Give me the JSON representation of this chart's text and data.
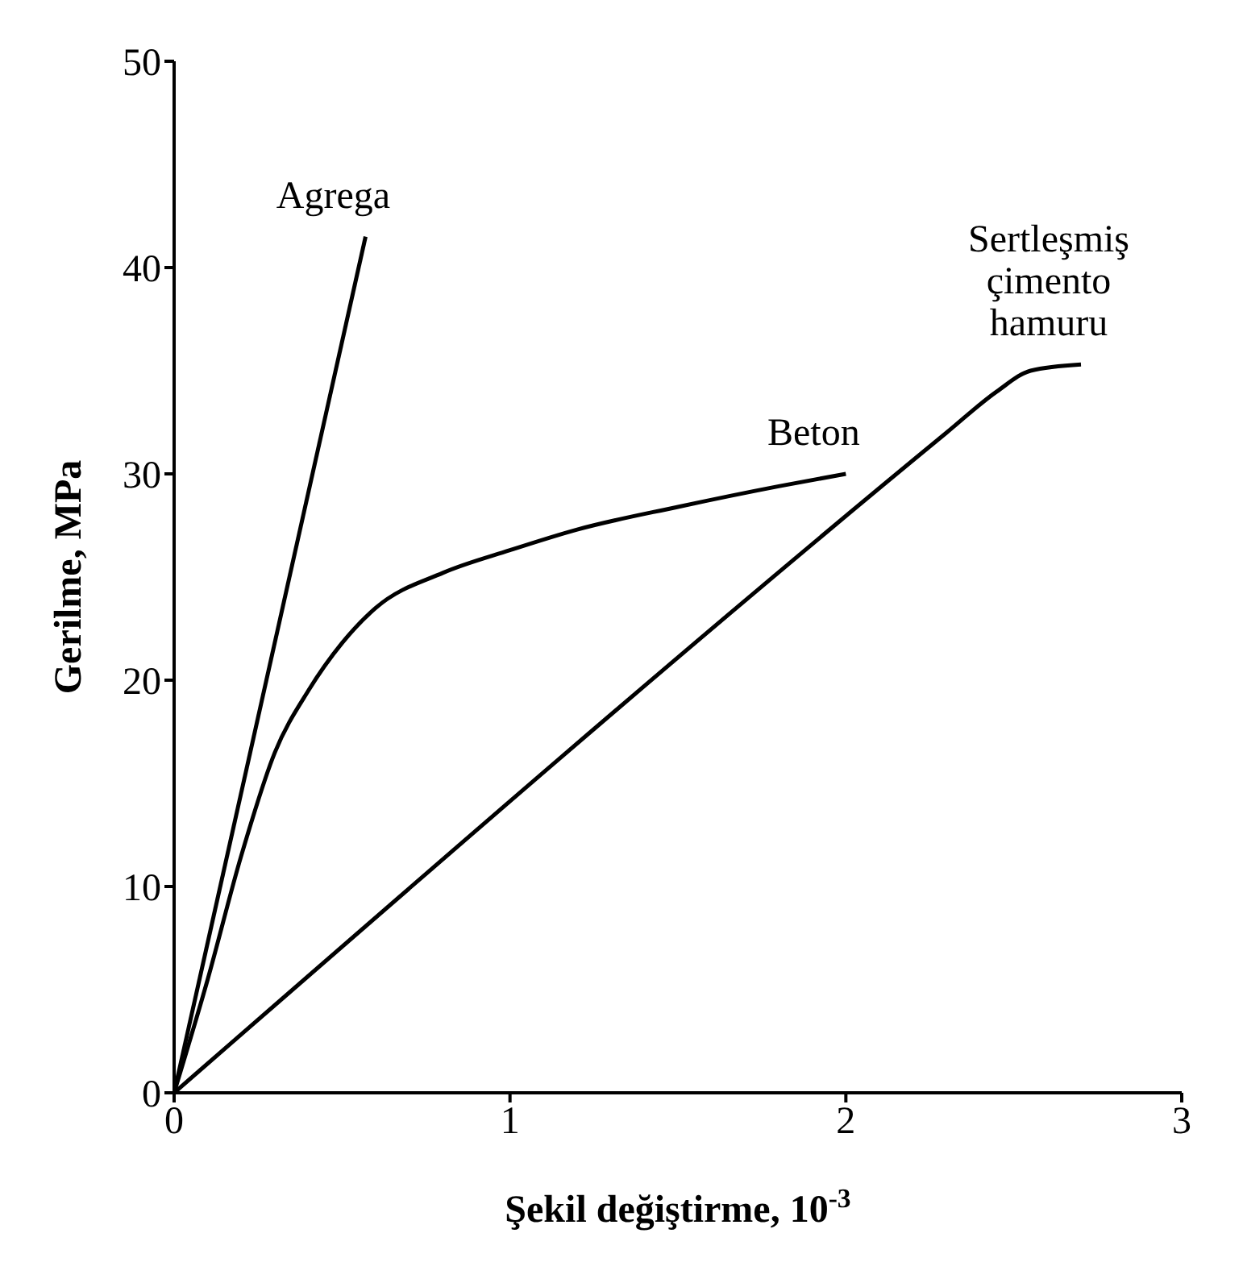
{
  "chart_data": {
    "type": "line",
    "xlabel": "Şekil değiştirme, 10$^{-3}$",
    "ylabel": "Gerilme, MPa",
    "xlim": [
      0,
      3
    ],
    "xticks": [
      0,
      1,
      2,
      3
    ],
    "ylim": [
      0,
      50
    ],
    "yticks": [
      0,
      10,
      20,
      30,
      40,
      50
    ],
    "grid": false,
    "legend": false,
    "marker": "none",
    "line_style": "solid",
    "series": [
      {
        "name": "Agrega",
        "color": "#000000",
        "x": [
          0,
          0.57
        ],
        "values": [
          0,
          41.5
        ]
      },
      {
        "name": "Beton",
        "color": "#000000",
        "x": [
          0,
          0.1,
          0.2,
          0.3,
          0.4,
          0.5,
          0.6,
          0.8,
          1,
          1.2,
          1.5,
          1.8,
          2
        ],
        "values": [
          0,
          5.5,
          11.5,
          16.5,
          19.5,
          21.8,
          23.5,
          25.2,
          26.3,
          27.3,
          28.4,
          29.4,
          30
        ]
      },
      {
        "name": "Sertleşmiş çimento hamuru",
        "color": "#000000",
        "x": [
          0,
          2.3,
          2.45,
          2.55,
          2.7
        ],
        "values": [
          0,
          32,
          34,
          35,
          35.3
        ]
      }
    ]
  }
}
